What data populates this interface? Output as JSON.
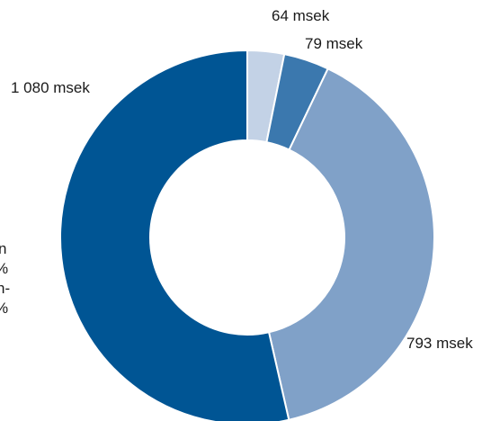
{
  "chart_data": {
    "type": "pie",
    "donut": true,
    "unit": "msek",
    "slices": [
      {
        "label": "64 msek",
        "value": 64,
        "color": "#c3d2e6"
      },
      {
        "label": "79 msek",
        "value": 79,
        "color": "#3b78ae"
      },
      {
        "label": "793 msek",
        "value": 793,
        "color": "#80a1c8"
      },
      {
        "label": "1 080 msek",
        "value": 1080,
        "color": "#005594"
      }
    ]
  },
  "side_text_fragments": [
    "n",
    "%",
    "n-",
    "%"
  ]
}
